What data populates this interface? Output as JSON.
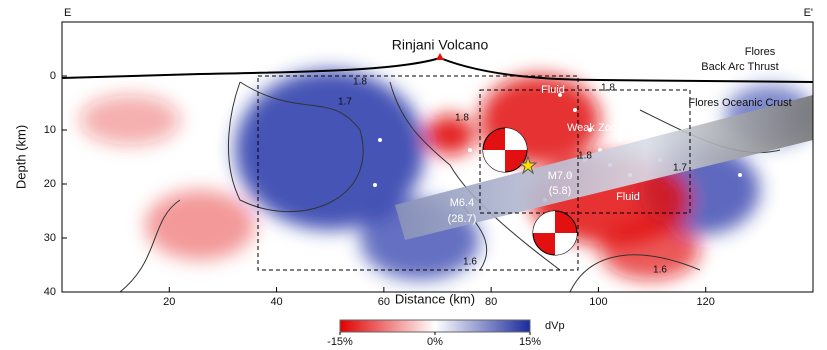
{
  "chart_data": {
    "type": "cross-section",
    "corner_labels": [
      "E",
      "E'"
    ],
    "x_label": "Distance (km)",
    "y_label": "Depth (km)",
    "xlim": [
      0,
      140
    ],
    "xticks": [
      20,
      40,
      60,
      80,
      100,
      120
    ],
    "ylim": [
      -10,
      40
    ],
    "yticks": [
      0,
      10,
      20,
      30,
      40
    ],
    "annotations": [
      "Rinjani Volcano",
      "Flores",
      "Back Arc Thrust",
      "Flores Oceanic Crust",
      "Weak Zone",
      "Fluid",
      "Fluid",
      "M6.4",
      "(28.7)",
      "M7.0",
      "(5.8)"
    ],
    "contour_labels": [
      1.7,
      1.8,
      1.8,
      1.8,
      1.6,
      1.6,
      1.7,
      1.8
    ],
    "colorbar": {
      "label": "dVp",
      "lim": [
        -15,
        15
      ],
      "ticks": [
        {
          "value": -15,
          "label": "-15%"
        },
        {
          "value": 0,
          "label": "0%"
        },
        {
          "value": 15,
          "label": "15%"
        }
      ]
    }
  }
}
